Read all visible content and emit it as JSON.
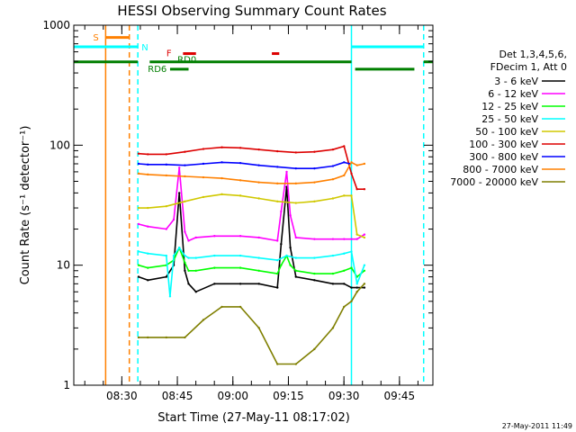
{
  "chart_data": {
    "type": "line",
    "title": "HESSI Observing Summary Count Rates",
    "ylabel": "Count Rate (s⁻¹ detector⁻¹)",
    "xlabel": "Start Time (27-May-11 08:17:02)",
    "x_unit": "minutes after 08:17:02",
    "xlim": [
      0,
      97
    ],
    "ylim": [
      1,
      1000
    ],
    "y_scale": "log",
    "grid": false,
    "y_ticks": [
      {
        "v": 1,
        "label": "1"
      },
      {
        "v": 10,
        "label": "10"
      },
      {
        "v": 100,
        "label": "100"
      },
      {
        "v": 1000,
        "label": "1000"
      }
    ],
    "x_ticks": [
      {
        "v": 12.97,
        "label": "08:30"
      },
      {
        "v": 27.97,
        "label": "08:45"
      },
      {
        "v": 42.97,
        "label": "09:00"
      },
      {
        "v": 57.97,
        "label": "09:15"
      },
      {
        "v": 72.97,
        "label": "09:30"
      },
      {
        "v": 87.97,
        "label": "09:45"
      }
    ],
    "legend": {
      "position": "right",
      "header": [
        "Det 1,3,4,5,6,",
        "FDecim 1, Att 0"
      ],
      "entries": [
        {
          "label": "3 - 6 keV",
          "color": "#000000"
        },
        {
          "label": "6 - 12 keV",
          "color": "#ff00ff"
        },
        {
          "label": "12 - 25 keV",
          "color": "#00ff00"
        },
        {
          "label": "25 - 50 keV",
          "color": "#00ffff"
        },
        {
          "label": "50 - 100 keV",
          "color": "#d0c800"
        },
        {
          "label": "100 - 300 keV",
          "color": "#dd0000"
        },
        {
          "label": "300 - 800 keV",
          "color": "#0000ff"
        },
        {
          "label": "800 - 7000 keV",
          "color": "#ff8000"
        },
        {
          "label": "7000 - 20000 keV",
          "color": "#7f7f00"
        }
      ]
    },
    "series": [
      {
        "name": "3 - 6 keV",
        "color": "#000000",
        "x": [
          17.5,
          20,
          25,
          27,
          28.5,
          30,
          31,
          33,
          38,
          45,
          50,
          55,
          56,
          57.5,
          58.5,
          60,
          65,
          70,
          73,
          75,
          76.5,
          78.5
        ],
        "y": [
          8,
          7.5,
          8,
          10,
          40,
          9,
          7,
          6,
          7,
          7,
          7,
          6.5,
          15,
          45,
          14,
          8,
          7.5,
          7,
          7,
          6.5,
          6.5,
          6.5
        ]
      },
      {
        "name": "6 - 12 keV",
        "color": "#ff00ff",
        "x": [
          17.5,
          20,
          25,
          27,
          28.5,
          30,
          31,
          33,
          38,
          45,
          50,
          55,
          56,
          57.5,
          58.5,
          60,
          65,
          70,
          73,
          75,
          76.5,
          78.5
        ],
        "y": [
          22,
          21,
          20,
          24,
          65,
          19,
          16,
          17,
          17.5,
          17.5,
          17,
          16,
          28,
          60,
          26,
          17,
          16.5,
          16.5,
          16.5,
          16.5,
          16.5,
          18
        ]
      },
      {
        "name": "12 - 25 keV",
        "color": "#00ff00",
        "x": [
          17.5,
          20,
          25,
          27,
          28.5,
          30,
          31,
          33,
          38,
          45,
          50,
          55,
          56,
          57.5,
          58.5,
          60,
          65,
          70,
          73,
          75,
          76.5,
          78.5
        ],
        "y": [
          10,
          9.5,
          10,
          11,
          14,
          10.5,
          9,
          9,
          9.5,
          9.5,
          9,
          8.5,
          10,
          12,
          10,
          9,
          8.5,
          8.5,
          9,
          9.5,
          8,
          9
        ]
      },
      {
        "name": "25 - 50 keV",
        "color": "#00ffff",
        "x": [
          17.5,
          20,
          25,
          26,
          27,
          28.5,
          30,
          31,
          33,
          38,
          45,
          50,
          55,
          57.5,
          60,
          65,
          70,
          73,
          75,
          76.5,
          78.5
        ],
        "y": [
          13,
          12.5,
          12,
          5.5,
          12,
          14,
          12,
          11.5,
          11.5,
          12,
          12,
          11.5,
          11,
          12,
          11.5,
          11.5,
          12,
          12.5,
          13,
          7,
          10
        ]
      },
      {
        "name": "50 - 100 keV",
        "color": "#d0c800",
        "x": [
          17.5,
          20,
          25,
          30,
          35,
          40,
          45,
          50,
          55,
          60,
          65,
          70,
          73,
          75,
          76.5,
          78.5
        ],
        "y": [
          30,
          30,
          31,
          34,
          37,
          39,
          38,
          36,
          34,
          33,
          34,
          36,
          38,
          38,
          18,
          17
        ]
      },
      {
        "name": "100 - 300 keV",
        "color": "#dd0000",
        "x": [
          17.5,
          20,
          25,
          30,
          35,
          40,
          45,
          50,
          55,
          60,
          65,
          70,
          73,
          75,
          76.5,
          78.5
        ],
        "y": [
          85,
          84,
          84,
          88,
          93,
          96,
          95,
          92,
          89,
          87,
          88,
          92,
          98,
          58,
          43,
          43
        ]
      },
      {
        "name": "300 - 800 keV",
        "color": "#0000ff",
        "x": [
          17.5,
          20,
          25,
          30,
          35,
          40,
          45,
          50,
          55,
          60,
          65,
          70,
          73,
          74.5
        ],
        "y": [
          70,
          69,
          69,
          68,
          70,
          72,
          71,
          68,
          66,
          64,
          64,
          67,
          72,
          70
        ]
      },
      {
        "name": "800 - 7000 keV",
        "color": "#ff8000",
        "x": [
          17.5,
          20,
          25,
          30,
          35,
          40,
          45,
          50,
          55,
          60,
          65,
          70,
          73,
          75,
          76.5,
          78.5
        ],
        "y": [
          58,
          57,
          56,
          55,
          54,
          53,
          51,
          49,
          48,
          48,
          49,
          52,
          56,
          72,
          68,
          70
        ]
      },
      {
        "name": "7000 - 20000 keV",
        "color": "#7f7f00",
        "x": [
          17.5,
          20,
          25,
          30,
          35,
          40,
          45,
          50,
          55,
          60,
          65,
          70,
          73,
          75,
          76.5,
          78.5
        ],
        "y": [
          2.5,
          2.5,
          2.5,
          2.5,
          3.5,
          4.5,
          4.5,
          3,
          1.5,
          1.5,
          2,
          3,
          4.5,
          5,
          6,
          7
        ]
      }
    ],
    "vertical_markers": [
      {
        "x": 8.6,
        "color": "#ff8000",
        "style": "solid"
      },
      {
        "x": 15.0,
        "color": "#ff8000",
        "style": "dashed"
      },
      {
        "x": 17.3,
        "color": "#00ffff",
        "style": "dashed"
      },
      {
        "x": 75.0,
        "color": "#00ffff",
        "style": "solid"
      },
      {
        "x": 94.5,
        "color": "#00ffff",
        "style": "dashed"
      }
    ],
    "flag_bars": [
      {
        "label": "S",
        "color": "#ff8000",
        "x1": 8.6,
        "x2": 15.0,
        "y": 790
      },
      {
        "label": "N",
        "color": "#00ffff",
        "x1": 0,
        "x2": 17.3,
        "y": 660
      },
      {
        "label": "N",
        "color": "#00ffff",
        "x1": 75.0,
        "x2": 94.5,
        "y": 660
      },
      {
        "label": "F",
        "color": "#dd0000",
        "x1": 29.5,
        "x2": 33.0,
        "y": 580
      },
      {
        "label": "F",
        "color": "#dd0000",
        "x1": 53.5,
        "x2": 55.5,
        "y": 580
      },
      {
        "label": "RD0",
        "color": "#007f00",
        "x1": 0,
        "x2": 17.3,
        "y": 495
      },
      {
        "label": "RD0",
        "color": "#007f00",
        "x1": 20.5,
        "x2": 75.0,
        "y": 495
      },
      {
        "label": "RD0",
        "color": "#007f00",
        "x1": 94.5,
        "x2": 97,
        "y": 495
      },
      {
        "label": "RD6",
        "color": "#007f00",
        "x1": 26.0,
        "x2": 31.0,
        "y": 430
      },
      {
        "label": "RD6",
        "color": "#007f00",
        "x1": 76.0,
        "x2": 92.0,
        "y": 430
      }
    ],
    "flag_labels": [
      {
        "text": "S",
        "color": "#ff8000",
        "x": 5.2,
        "y": 800
      },
      {
        "text": "N",
        "color": "#00ffff",
        "x": 18.3,
        "y": 660
      },
      {
        "text": "F",
        "color": "#dd0000",
        "x": 25.0,
        "y": 590
      },
      {
        "text": "RD0",
        "color": "#007f00",
        "x": 28.0,
        "y": 525
      },
      {
        "text": "RD6",
        "color": "#007f00",
        "x": 20.0,
        "y": 435
      }
    ],
    "footer_date": "27-May-2011 11:49"
  }
}
